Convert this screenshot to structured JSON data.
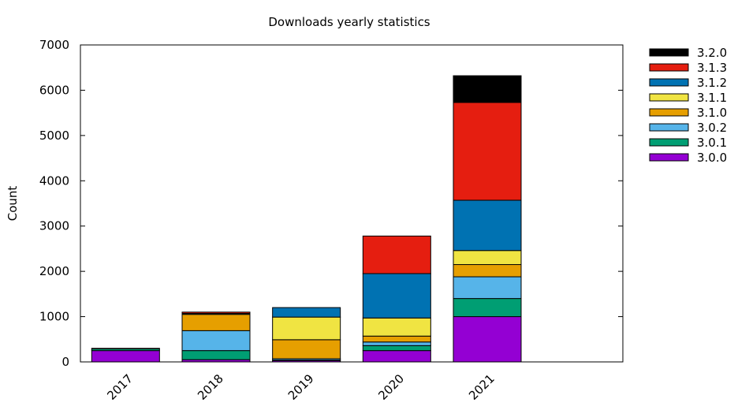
{
  "chart_data": {
    "type": "bar",
    "stacked": true,
    "title": "Downloads yearly statistics",
    "xlabel": "",
    "ylabel": "Count",
    "ylim": [
      0,
      7000
    ],
    "yticks": [
      0,
      1000,
      2000,
      3000,
      4000,
      5000,
      6000,
      7000
    ],
    "grid": false,
    "legend_position": "outside-top-right",
    "categories": [
      "2017",
      "2018",
      "2019",
      "2020",
      "2021"
    ],
    "series": [
      {
        "name": "3.0.0",
        "color": "#9400d3",
        "values": [
          250,
          50,
          30,
          250,
          1000
        ]
      },
      {
        "name": "3.0.1",
        "color": "#009e73",
        "values": [
          40,
          200,
          10,
          110,
          400
        ]
      },
      {
        "name": "3.0.2",
        "color": "#56b4e9",
        "values": [
          10,
          440,
          30,
          80,
          480
        ]
      },
      {
        "name": "3.1.0",
        "color": "#e69f00",
        "values": [
          0,
          360,
          420,
          130,
          270
        ]
      },
      {
        "name": "3.1.1",
        "color": "#f0e442",
        "values": [
          0,
          0,
          500,
          400,
          310
        ]
      },
      {
        "name": "3.1.2",
        "color": "#0072b2",
        "values": [
          0,
          20,
          210,
          980,
          1110
        ]
      },
      {
        "name": "3.1.3",
        "color": "#e51e10",
        "values": [
          0,
          30,
          0,
          830,
          2160
        ]
      },
      {
        "name": "3.2.0",
        "color": "#000000",
        "values": [
          0,
          0,
          0,
          0,
          590
        ]
      }
    ]
  }
}
